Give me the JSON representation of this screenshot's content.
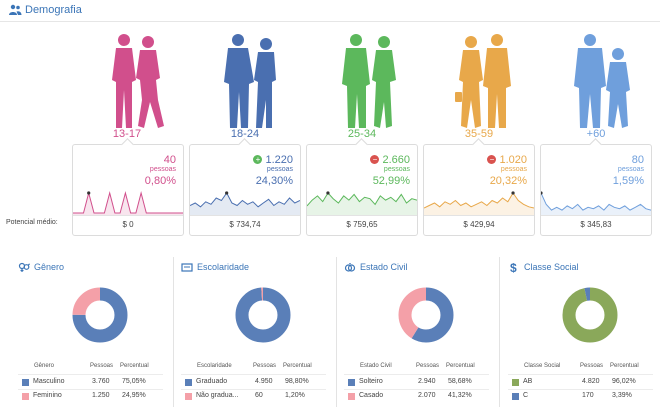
{
  "header": {
    "title": "Demografia"
  },
  "age_groups": [
    {
      "label": "13-17",
      "count": "40",
      "unit": "pessoas",
      "percent": "0,80%",
      "trend": "",
      "money": "$ 0",
      "color": "#d14f8c",
      "spark": [
        0,
        0,
        0,
        22,
        0,
        0,
        0,
        22,
        0,
        0,
        22,
        0,
        0,
        22,
        0,
        0,
        0,
        0,
        0,
        0,
        0,
        0
      ]
    },
    {
      "label": "18-24",
      "count": "1.220",
      "unit": "pessoas",
      "percent": "24,30%",
      "trend": "up",
      "money": "$ 734,74",
      "color": "#4a6fb0",
      "spark": [
        6,
        8,
        5,
        9,
        7,
        12,
        10,
        16,
        8,
        6,
        10,
        7,
        9,
        5,
        8,
        11,
        6,
        9,
        7,
        12,
        8,
        10
      ]
    },
    {
      "label": "25-34",
      "count": "2.660",
      "unit": "pessoas",
      "percent": "52,99%",
      "trend": "down",
      "money": "$ 759,65",
      "color": "#5cb85c",
      "spark": [
        5,
        9,
        12,
        8,
        14,
        10,
        7,
        12,
        9,
        13,
        8,
        11,
        10,
        6,
        12,
        9,
        11,
        8,
        13,
        7,
        10,
        9
      ]
    },
    {
      "label": "35-59",
      "count": "1.020",
      "unit": "pessoas",
      "percent": "20,32%",
      "trend": "down",
      "money": "$ 429,94",
      "color": "#e8a84a",
      "spark": [
        4,
        6,
        8,
        5,
        9,
        7,
        10,
        6,
        8,
        5,
        7,
        9,
        6,
        10,
        8,
        12,
        9,
        16,
        10,
        7,
        5,
        4
      ]
    },
    {
      "label": "+60",
      "count": "80",
      "unit": "pessoas",
      "percent": "1,59%",
      "trend": "",
      "money": "$ 345,83",
      "color": "#6f9fdc",
      "spark": [
        14,
        6,
        2,
        4,
        2,
        5,
        3,
        6,
        2,
        4,
        3,
        5,
        2,
        6,
        4,
        3,
        5,
        2,
        4,
        6,
        3,
        2
      ]
    }
  ],
  "potencial_label": "Potencial médio:",
  "panels": [
    {
      "title": "Gênero",
      "icon": "gender-icon",
      "columns": [
        "Gênero",
        "Pessoas",
        "Percentual"
      ],
      "rows": [
        {
          "label": "Masculino",
          "people": "3.760",
          "percent": "75,05%",
          "color": "#5a7fb8",
          "value": 75.05
        },
        {
          "label": "Feminino",
          "people": "1.250",
          "percent": "24,95%",
          "color": "#f4a0a8",
          "value": 24.95
        }
      ]
    },
    {
      "title": "Escolaridade",
      "icon": "education-icon",
      "columns": [
        "Escolaridade",
        "Pessoas",
        "Percentual"
      ],
      "rows": [
        {
          "label": "Graduado",
          "people": "4.950",
          "percent": "98,80%",
          "color": "#5a7fb8",
          "value": 98.8
        },
        {
          "label": "Não gradua...",
          "people": "60",
          "percent": "1,20%",
          "color": "#f4a0a8",
          "value": 1.2
        }
      ]
    },
    {
      "title": "Estado Civil",
      "icon": "rings-icon",
      "columns": [
        "Estado Civil",
        "Pessoas",
        "Percentual"
      ],
      "rows": [
        {
          "label": "Solteiro",
          "people": "2.940",
          "percent": "58,68%",
          "color": "#5a7fb8",
          "value": 58.68
        },
        {
          "label": "Casado",
          "people": "2.070",
          "percent": "41,32%",
          "color": "#f4a0a8",
          "value": 41.32
        }
      ]
    },
    {
      "title": "Classe Social",
      "icon": "dollar-icon",
      "columns": [
        "Classe Social",
        "Pessoas",
        "Percentual"
      ],
      "rows": [
        {
          "label": "AB",
          "people": "4.820",
          "percent": "96,02%",
          "color": "#8aa85a",
          "value": 96.02
        },
        {
          "label": "C",
          "people": "170",
          "percent": "3,39%",
          "color": "#5a7fb8",
          "value": 3.39
        }
      ]
    }
  ]
}
